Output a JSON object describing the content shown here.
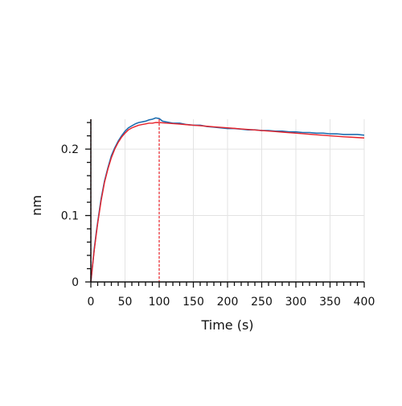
{
  "chart_data": {
    "type": "line",
    "title": "",
    "xlabel": "Time (s)",
    "ylabel": "nm",
    "xlim": [
      0,
      400
    ],
    "ylim": [
      0,
      0.245
    ],
    "x_ticks": [
      0,
      50,
      100,
      150,
      200,
      250,
      300,
      350,
      400
    ],
    "x_tick_labels": [
      "0",
      "50",
      "100",
      "150",
      "200",
      "250",
      "300",
      "350",
      "400"
    ],
    "y_ticks": [
      0,
      0.1,
      0.2
    ],
    "y_tick_labels": [
      "0",
      "0.1",
      "0.2"
    ],
    "grid": true,
    "legend": "none",
    "colors": {
      "measured": "#1f6fb0",
      "fit": "#e8222a",
      "grid": "#e3e3e3",
      "axis": "#111111"
    },
    "annotations": [
      {
        "type": "vline",
        "x": 100,
        "style": "dashed",
        "color": "#e8222a"
      },
      {
        "type": "vline",
        "x": 0,
        "style": "dashed",
        "color": "#e8222a"
      }
    ],
    "series": [
      {
        "role": "measured",
        "x": [
          0,
          2,
          5,
          8,
          10,
          15,
          20,
          25,
          30,
          35,
          40,
          45,
          50,
          55,
          60,
          65,
          70,
          75,
          80,
          85,
          90,
          95,
          100,
          105,
          110,
          120,
          130,
          140,
          150,
          160,
          170,
          180,
          190,
          200,
          210,
          220,
          230,
          240,
          250,
          260,
          270,
          280,
          290,
          300,
          310,
          320,
          330,
          340,
          350,
          360,
          370,
          380,
          390,
          400
        ],
        "y": [
          0.0,
          0.02,
          0.05,
          0.075,
          0.09,
          0.125,
          0.152,
          0.172,
          0.19,
          0.202,
          0.212,
          0.22,
          0.227,
          0.232,
          0.235,
          0.238,
          0.24,
          0.241,
          0.242,
          0.244,
          0.245,
          0.247,
          0.246,
          0.242,
          0.241,
          0.239,
          0.239,
          0.237,
          0.236,
          0.236,
          0.234,
          0.233,
          0.232,
          0.231,
          0.231,
          0.23,
          0.229,
          0.229,
          0.228,
          0.228,
          0.227,
          0.227,
          0.226,
          0.226,
          0.225,
          0.225,
          0.224,
          0.224,
          0.223,
          0.223,
          0.222,
          0.222,
          0.222,
          0.221
        ]
      },
      {
        "role": "fit",
        "x": [
          0,
          2,
          5,
          8,
          10,
          15,
          20,
          25,
          30,
          35,
          40,
          45,
          50,
          55,
          60,
          65,
          70,
          75,
          80,
          85,
          90,
          95,
          100,
          110,
          120,
          130,
          140,
          150,
          160,
          170,
          180,
          190,
          200,
          210,
          220,
          230,
          240,
          250,
          260,
          270,
          280,
          290,
          300,
          310,
          320,
          330,
          340,
          350,
          360,
          370,
          380,
          390,
          400
        ],
        "y": [
          0.0,
          0.02,
          0.048,
          0.072,
          0.088,
          0.122,
          0.15,
          0.17,
          0.187,
          0.2,
          0.21,
          0.218,
          0.224,
          0.229,
          0.232,
          0.234,
          0.236,
          0.237,
          0.238,
          0.239,
          0.239,
          0.24,
          0.24,
          0.2392,
          0.2384,
          0.2376,
          0.2368,
          0.236,
          0.2352,
          0.2344,
          0.2336,
          0.2328,
          0.232,
          0.2312,
          0.2304,
          0.2296,
          0.2288,
          0.228,
          0.2272,
          0.2264,
          0.2256,
          0.2248,
          0.224,
          0.2232,
          0.2224,
          0.2216,
          0.2208,
          0.22,
          0.2193,
          0.2186,
          0.218,
          0.2174,
          0.2168
        ]
      }
    ]
  }
}
